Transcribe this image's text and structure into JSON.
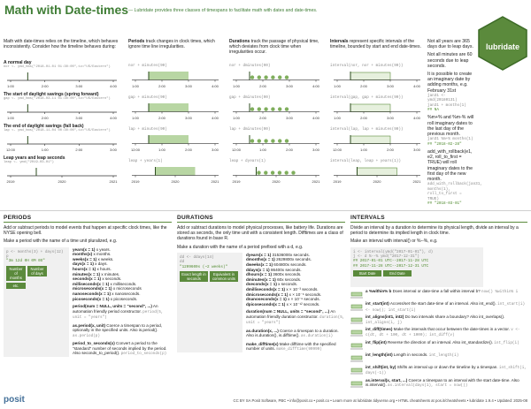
{
  "header": {
    "title": "Math with Date-times",
    "subtitle": "— Lubridate provides three classes of timespans to facilitate math with dates and date-times."
  },
  "intro": {
    "text": "Math with date-times relies on the timeline, which behaves inconsistently. Consider how the timeline behaves during:",
    "rows": [
      {
        "label": "A normal day",
        "code": "nor <- ymd_hms(\"2018-01-01 01:30:00\",tz=\"US/Eastern\")",
        "ticks": [
          "1:00",
          "2:00",
          "3:00",
          "4:00"
        ]
      },
      {
        "label": "The start of daylight savings (spring forward)",
        "code": "gap <- ymd_hms(\"2018-03-11 01:30:00\",tz=\"US/Eastern\")",
        "ticks": [
          "1:00",
          "2:00",
          "3:00",
          "4:00"
        ]
      },
      {
        "label": "The end of daylight savings (fall back)",
        "code": "lap <- ymd_hms(\"2018-11-04 00:30:00\",tz=\"US/Eastern\")",
        "ticks": [
          "12:00",
          "1:00",
          "2:00",
          "3:00"
        ]
      },
      {
        "label": "Leap years and leap seconds",
        "code": "leap <- ymd(\"2019-03-01\")",
        "ticks": [
          "2019",
          "2020",
          "2021"
        ]
      }
    ]
  },
  "columns": [
    {
      "heading": "Periods",
      "text": "track changes in clock times, which ignore time line irregularities.",
      "cells": [
        "nor + minutes(90)",
        "gap + minutes(90)",
        "lap + minutes(90)",
        "leap + years(1)"
      ]
    },
    {
      "heading": "Durations",
      "text": "track the passage of physical time, which deviates from clock time when irregularities occur.",
      "cells": [
        "nor + dminutes(90)",
        "gap + dminutes(90)",
        "lap + dminutes(90)",
        "leap + dyears(1)"
      ]
    },
    {
      "heading": "Intervals",
      "text": "represent specific intervals of the timeline, bounded by start and end date-times.",
      "cells": [
        "interval(nor, nor + minutes(90))",
        "interval(gap, gap + minutes(90))",
        "interval(lap, lap + minutes(90))",
        "interval(leap, leap + years(1))"
      ]
    }
  ],
  "notes": [
    {
      "text": "Not all years are 365 days due to leap days."
    },
    {
      "text": "Not all minutes are 60 seconds due to leap seconds."
    },
    {
      "text": "It is possible to create an imaginary date by adding months, e.g. February 31st",
      "code": [
        "jan31 <- ymd(20180131)",
        "jan31 + months(1)",
        "## NA"
      ]
    },
    {
      "text": "%m+% and %m-% will roll imaginary dates to the last day of the previous month.",
      "code": [
        "jan31 %m+% months(1)",
        "## \"2018-02-28\""
      ]
    },
    {
      "text": "add_with_rollback(e1, e2, roll_to_first = TRUE) will roll imaginary dates to the first day of the new month.",
      "code": [
        "add_with_rollback(jan31, months(1), roll_to_first = TRUE)",
        "## \"2018-03-01\""
      ]
    }
  ],
  "logo": "lubridate",
  "periods": {
    "heading": "PERIODS",
    "text": "Add or subtract periods to model events that happen at specific clock times, like the NYSE opening bell.",
    "make": "Make a period with the name of a time unit pluralized, e.g.",
    "code": [
      "p <- months(3) + days(12)",
      "p",
      "\"3m 12d 0H 0M 0S\""
    ],
    "labels": [
      "Number of months",
      "Number of days",
      "etc."
    ],
    "functions": [
      [
        "years(x = 1)",
        "x years."
      ],
      [
        "months(x)",
        "x months."
      ],
      [
        "weeks(x = 1)",
        "x weeks."
      ],
      [
        "days(x = 1)",
        "x days."
      ],
      [
        "hours(x = 1)",
        "x hours."
      ],
      [
        "minutes(x = 1)",
        "x minutes."
      ],
      [
        "seconds(x = 1)",
        "x seconds."
      ],
      [
        "milliseconds(x = 1)",
        "x milliseconds."
      ],
      [
        "microseconds(x = 1)",
        "x microseconds"
      ],
      [
        "nanoseconds(x = 1)",
        "x nanoseconds."
      ],
      [
        "picoseconds(x = 1)",
        "x picoseconds."
      ]
    ],
    "extras": [
      {
        "sig": "period(num = NULL, units = \"second\", ...)",
        "desc": "An automation friendly period constructor.",
        "example": "period(5, unit = \"years\")"
      },
      {
        "sig": "as.period(x, unit)",
        "desc": "Coerce a timespan to a period, optionally in the specified units. Also is.period().",
        "example": "as.period(p)"
      },
      {
        "sig": "period_to_seconds(x)",
        "desc": "Convert a period to the \"standard\" number of seconds implied by the period. Also seconds_to_period().",
        "example": "period_to_seconds(p)"
      }
    ]
  },
  "durations": {
    "heading": "DURATIONS",
    "text": "Add or subtract durations to model physical processes, like battery life. Durations are stored as seconds, the only time unit with a consistent length. Difftimes are a class of durations found in base R.",
    "make": "Make a duration with the name of a period prefixed with a d, e.g.",
    "code": [
      "dd <- ddays(14)",
      "dd",
      "\"1209600s (~2 weeks)\""
    ],
    "labels": [
      "Exact length in seconds",
      "Equivalent in common units"
    ],
    "functions": [
      [
        "dyears(x = 1)",
        "31536000x seconds."
      ],
      [
        "dmonths(x = 1)",
        "2629800x seconds."
      ],
      [
        "dweeks(x = 1)",
        "604800x seconds."
      ],
      [
        "ddays(x = 1)",
        "86400x seconds."
      ],
      [
        "dhours(x = 1)",
        "3600x seconds."
      ],
      [
        "dminutes(x = 1)",
        "60x seconds."
      ],
      [
        "dseconds(x = 1)",
        "x seconds."
      ],
      [
        "dmilliseconds(x = 1)",
        "x × 10⁻³ seconds."
      ],
      [
        "dmicroseconds(x = 1)",
        "x × 10⁻⁶ seconds."
      ],
      [
        "dnanoseconds(x = 1)",
        "x × 10⁻⁹ seconds."
      ],
      [
        "dpicoseconds(x = 1)",
        "x × 10⁻¹² seconds."
      ]
    ],
    "extras": [
      {
        "sig": "duration(num = NULL, units = \"second\", ...)",
        "desc": "An automation friendly duration constructor.",
        "example": "duration(5, unit = \"years\")"
      },
      {
        "sig": "as.duration(x, ...)",
        "desc": "Coerce a timespan to a duration. Also is.duration(), is.difftime().",
        "example": "as.duration(i)"
      },
      {
        "sig": "make_difftime(x)",
        "desc": "Make difftime with the specified number of units.",
        "example": "make_difftime(99999)"
      }
    ]
  },
  "intervals": {
    "heading": "INTERVALS",
    "text": "Divide an interval by a duration to determine its physical length, divide an interval by a period to determine its implied length in clock time.",
    "make": "Make an interval with interval() or %--%, e.g.",
    "code": [
      "i <- interval(ymd(\"2017-01-01\"), d)",
      "j <- d %--% ymd(\"2017-12-31\")",
      "## 2017-01-01 UTC--2017-11-28 UTC",
      "## 2017-11-28 UTC--2017-12-31 UTC"
    ],
    "labels": [
      "Start Date",
      "End Date"
    ],
    "items": [
      {
        "sig": "a %within% b",
        "desc": "Does interval or date-time a fall within interval b?",
        "example": "now() %within% i"
      },
      {
        "sig": "int_start(int)",
        "desc": "Access/set the start date-time of an interval. Also int_end().",
        "example": "int_start(i) <- now(); int_start(i)"
      },
      {
        "sig": "int_aligns(int1, int2)",
        "desc": "Do two intervals share a boundary? Also int_overlaps().",
        "example": "int_aligns(i, j)"
      },
      {
        "sig": "int_diff(times)",
        "desc": "Make the intervals that occur between the date-times in a vector.",
        "example": "v <-c(dt, dt + 100, dt + 1000); int_diff(v)"
      },
      {
        "sig": "int_flip(int)",
        "desc": "Reverse the direction of an interval. Also int_standardize().",
        "example": "int_flip(i)"
      },
      {
        "sig": "int_length(int)",
        "desc": "Length in seconds.",
        "example": "int_length(i)"
      },
      {
        "sig": "int_shift(int, by)",
        "desc": "Shifts an interval up or down the timeline by a timespan.",
        "example": "int_shift(i, days(-1))"
      },
      {
        "sig": "as.interval(x, start, ...)",
        "desc": "Coerce a timespan to an interval with the start date-time. Also is.interval().",
        "example": "as.interval(days(1), start = now())"
      }
    ]
  },
  "footer": {
    "brand": "posit",
    "text": "CC BY SA Posit Software, PBC • info@posit.co • posit.co • Learn more at lubridate.tidyverse.org • HTML cheatsheets at pos.it/cheatsheets • lubridate 1.9.4 • Updated: 2025-08"
  }
}
